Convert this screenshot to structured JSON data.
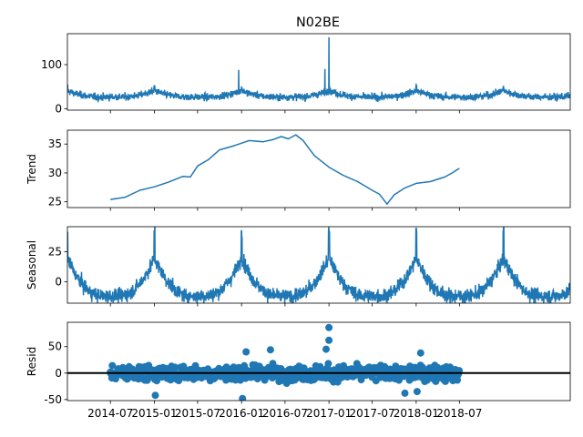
{
  "chart_data": {
    "type": "line",
    "title": "N02BE",
    "x_range": [
      "2014-01-02",
      "2019-10-08"
    ],
    "x_ticks": [
      "2014-07",
      "2015-01",
      "2015-07",
      "2016-01",
      "2016-07",
      "2017-01",
      "2017-07",
      "2018-01",
      "2018-07"
    ],
    "color": "#1f77b4",
    "panels": [
      {
        "name": "observed",
        "ylabel": "",
        "plot": "line",
        "ylim": [
          -3,
          170
        ],
        "y_ticks": [
          0,
          100
        ],
        "base_level": 32,
        "seasonal_amplitude": 14,
        "noise": 12,
        "spikes": [
          {
            "x": "2017-01-01",
            "y": 162
          },
          {
            "x": "2016-12-15",
            "y": 90
          },
          {
            "x": "2015-12-20",
            "y": 88
          }
        ]
      },
      {
        "name": "trend",
        "ylabel": "Trend",
        "plot": "line",
        "ylim": [
          24,
          37.4
        ],
        "y_ticks": [
          25,
          30,
          35
        ],
        "x_span": [
          "2014-07-01",
          "2018-07-01"
        ],
        "points": [
          {
            "x": "2014-07-01",
            "y": 25.4
          },
          {
            "x": "2014-09-01",
            "y": 25.8
          },
          {
            "x": "2014-11-01",
            "y": 27.0
          },
          {
            "x": "2015-01-01",
            "y": 27.6
          },
          {
            "x": "2015-03-01",
            "y": 28.4
          },
          {
            "x": "2015-05-01",
            "y": 29.4
          },
          {
            "x": "2015-06-01",
            "y": 29.3
          },
          {
            "x": "2015-07-01",
            "y": 31.2
          },
          {
            "x": "2015-08-15",
            "y": 32.3
          },
          {
            "x": "2015-10-01",
            "y": 34.0
          },
          {
            "x": "2015-12-01",
            "y": 34.7
          },
          {
            "x": "2016-02-01",
            "y": 35.6
          },
          {
            "x": "2016-04-01",
            "y": 35.4
          },
          {
            "x": "2016-05-15",
            "y": 35.8
          },
          {
            "x": "2016-06-15",
            "y": 36.3
          },
          {
            "x": "2016-07-15",
            "y": 35.9
          },
          {
            "x": "2016-08-15",
            "y": 36.6
          },
          {
            "x": "2016-09-15",
            "y": 35.6
          },
          {
            "x": "2016-11-01",
            "y": 33.0
          },
          {
            "x": "2017-01-01",
            "y": 31.0
          },
          {
            "x": "2017-03-01",
            "y": 29.6
          },
          {
            "x": "2017-05-01",
            "y": 28.5
          },
          {
            "x": "2017-07-01",
            "y": 27.0
          },
          {
            "x": "2017-08-01",
            "y": 26.3
          },
          {
            "x": "2017-09-01",
            "y": 24.6
          },
          {
            "x": "2017-10-01",
            "y": 26.2
          },
          {
            "x": "2017-11-15",
            "y": 27.4
          },
          {
            "x": "2018-01-01",
            "y": 28.2
          },
          {
            "x": "2018-03-01",
            "y": 28.5
          },
          {
            "x": "2018-05-01",
            "y": 29.3
          },
          {
            "x": "2018-06-01",
            "y": 30.0
          },
          {
            "x": "2018-07-01",
            "y": 30.8
          }
        ]
      },
      {
        "name": "seasonal",
        "ylabel": "Seasonal",
        "plot": "line",
        "ylim": [
          -18,
          46
        ],
        "y_ticks": [
          0,
          25
        ],
        "period_days": 365.25,
        "peaks": [
          {
            "x": "2014-12-31",
            "y": 43
          },
          {
            "x": "2016-01-01",
            "y": 43
          },
          {
            "x": "2017-01-01",
            "y": 43
          },
          {
            "x": "2018-01-01",
            "y": 43
          },
          {
            "x": "2019-01-01",
            "y": 43
          }
        ],
        "trough_level": -10,
        "noise": 5
      },
      {
        "name": "resid",
        "ylabel": "Resid",
        "plot": "scatter",
        "ylim": [
          -52,
          96
        ],
        "y_ticks": [
          -50,
          0,
          50
        ],
        "zero_line": true,
        "x_span": [
          "2014-07-01",
          "2018-07-01"
        ],
        "noise": 12,
        "outliers": [
          {
            "x": "2017-01-01",
            "y": 86
          },
          {
            "x": "2017-01-01",
            "y": 62
          },
          {
            "x": "2016-12-20",
            "y": 45
          },
          {
            "x": "2016-01-20",
            "y": 40
          },
          {
            "x": "2016-05-01",
            "y": 44
          },
          {
            "x": "2016-01-05",
            "y": -48
          },
          {
            "x": "2015-01-05",
            "y": -42
          },
          {
            "x": "2018-01-20",
            "y": 38
          },
          {
            "x": "2017-11-15",
            "y": -38
          },
          {
            "x": "2018-01-05",
            "y": -35
          }
        ]
      }
    ]
  }
}
